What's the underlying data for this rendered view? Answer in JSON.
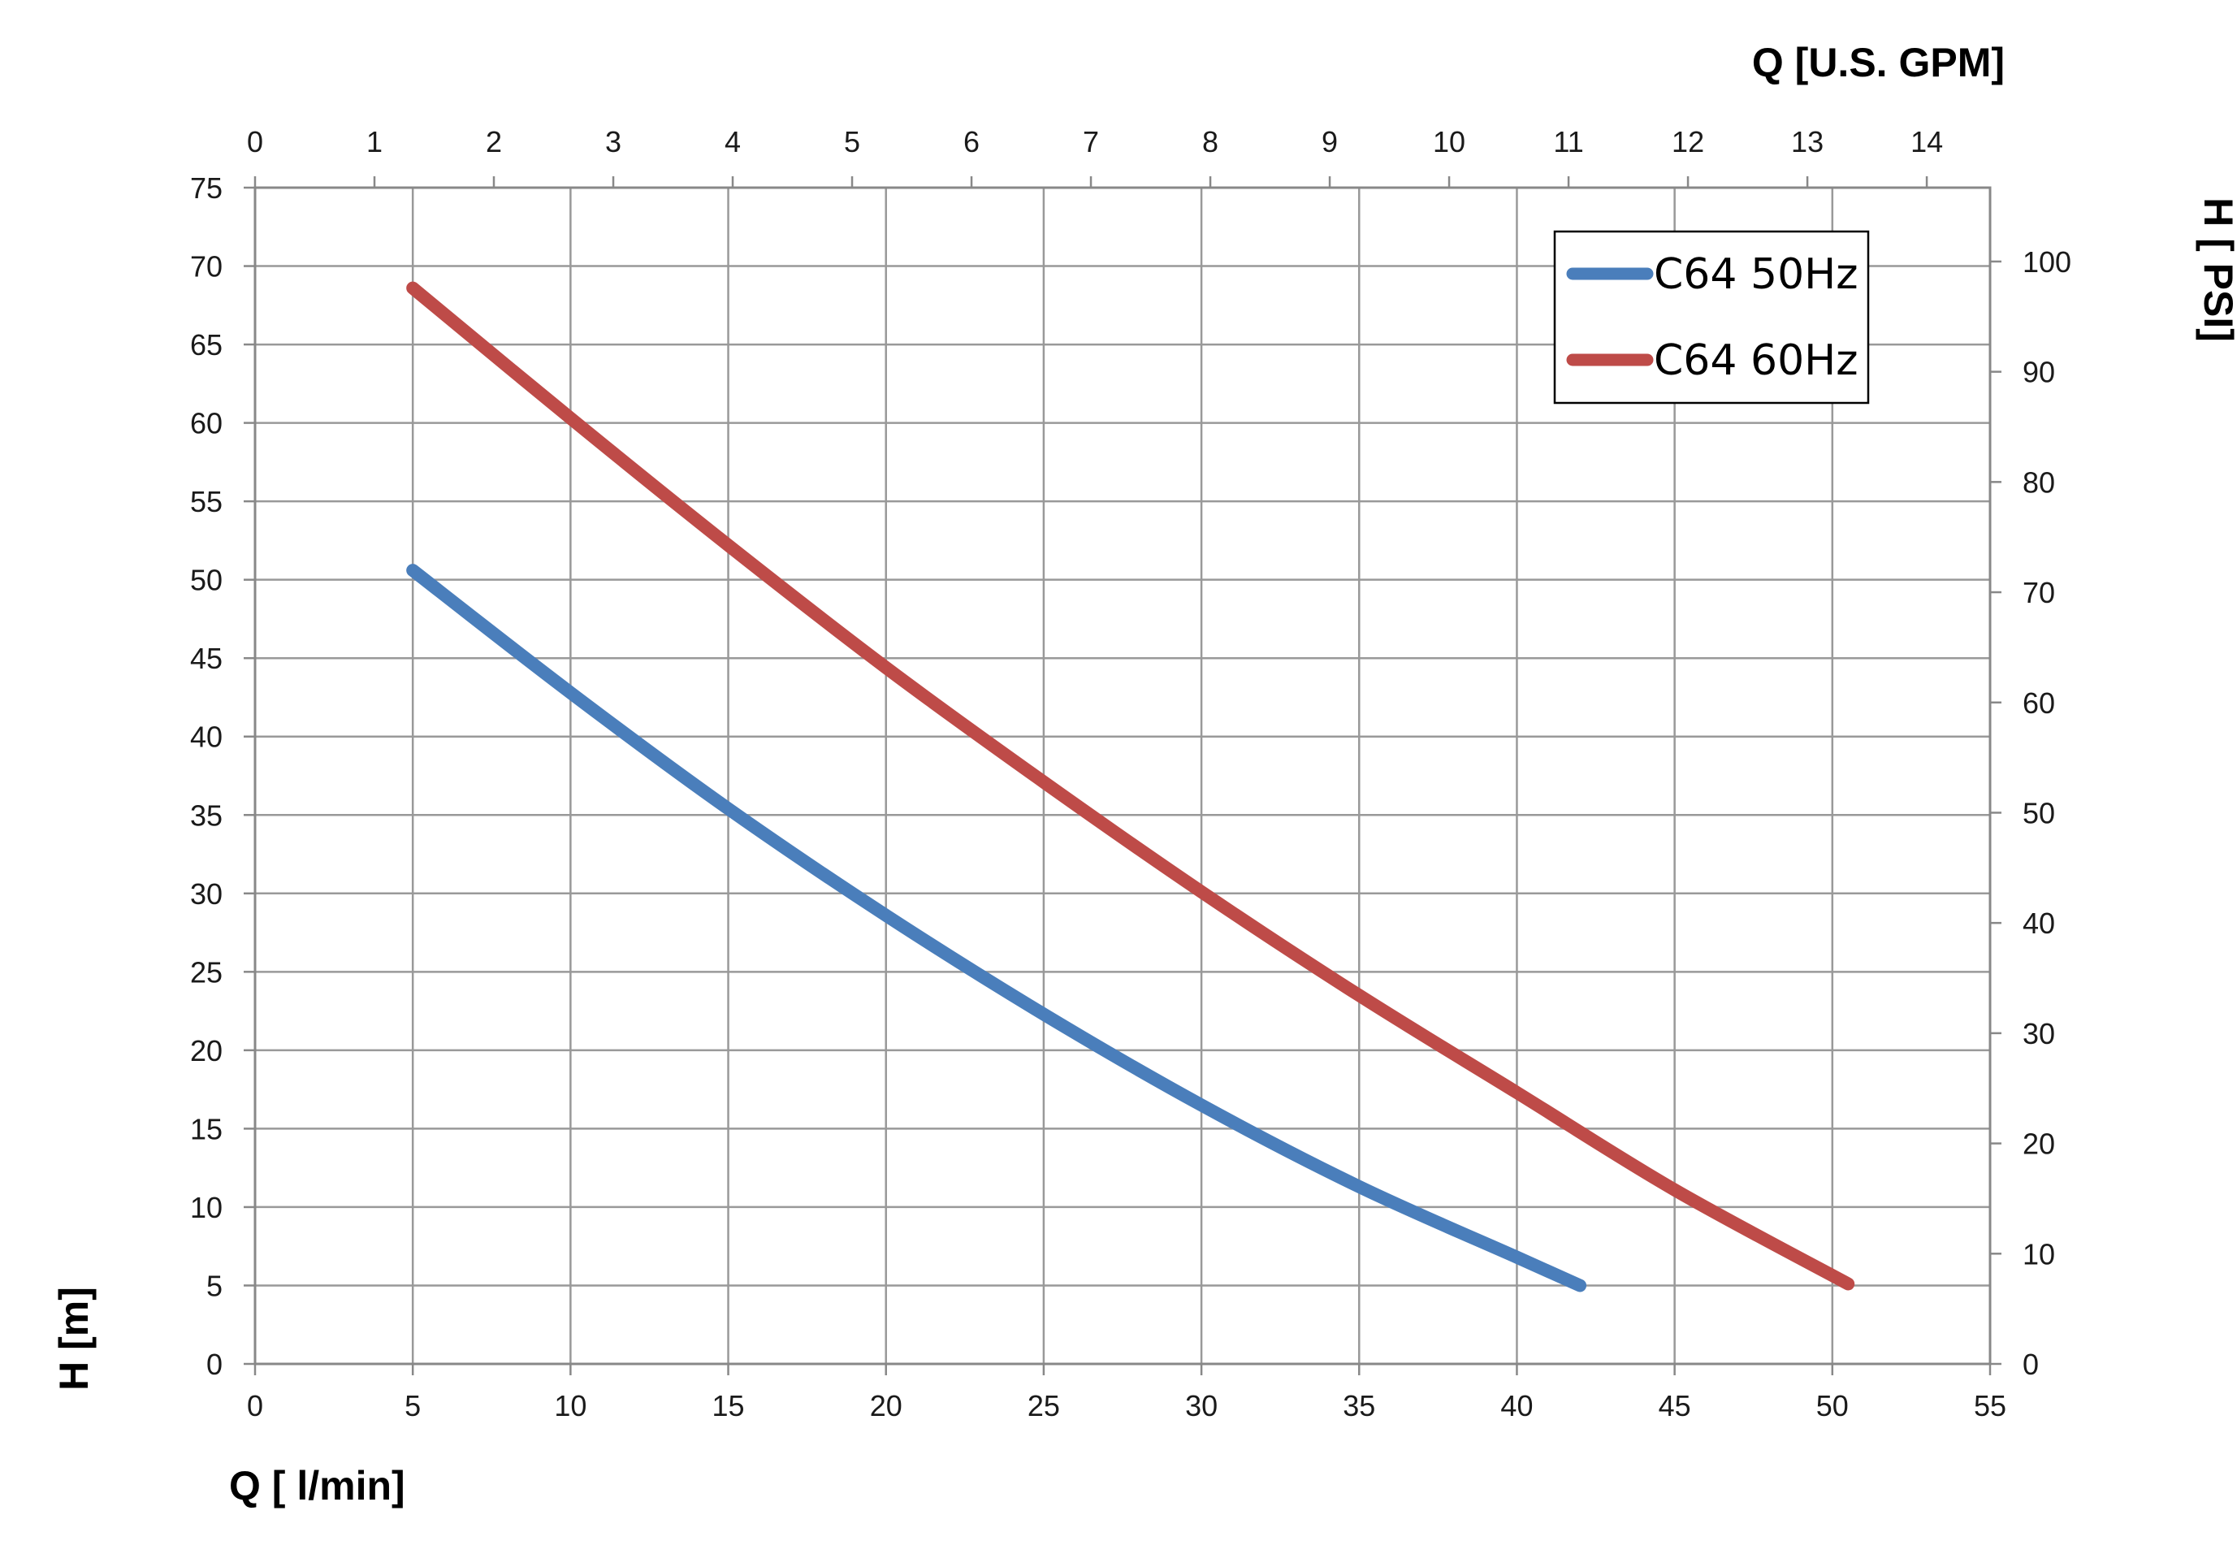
{
  "chart_data": {
    "type": "line",
    "x_bottom": {
      "label": "Q [ l/min]",
      "range": [
        0,
        55
      ],
      "ticks": [
        "0",
        "5",
        "10",
        "15",
        "20",
        "25",
        "30",
        "35",
        "40",
        "45",
        "50",
        "55"
      ]
    },
    "x_top": {
      "label": "Q  [U.S. GPM]",
      "range": [
        0,
        14.53
      ],
      "ticks": [
        "0",
        "1",
        "2",
        "3",
        "4",
        "5",
        "6",
        "7",
        "8",
        "9",
        "10",
        "11",
        "12",
        "13",
        "14"
      ]
    },
    "y_left": {
      "label": "H [m]",
      "range": [
        0,
        75
      ],
      "ticks": [
        "0",
        "5",
        "10",
        "15",
        "20",
        "25",
        "30",
        "35",
        "40",
        "45",
        "50",
        "55",
        "60",
        "65",
        "70",
        "75"
      ]
    },
    "y_right": {
      "label": "H [ PSI]",
      "range": [
        0,
        106.7
      ],
      "ticks": [
        "0",
        "10",
        "20",
        "30",
        "40",
        "50",
        "60",
        "70",
        "80",
        "90",
        "100"
      ]
    },
    "grid": true,
    "legend": {
      "placement": "top-right"
    },
    "series": [
      {
        "name": "C64 50Hz",
        "color": "#4a7ebb",
        "points": [
          [
            5,
            50.6
          ],
          [
            10,
            42.8
          ],
          [
            15,
            35.4
          ],
          [
            20,
            28.6
          ],
          [
            25,
            22.3
          ],
          [
            30,
            16.5
          ],
          [
            35,
            11.3
          ],
          [
            40,
            6.8
          ],
          [
            42,
            5
          ]
        ]
      },
      {
        "name": "C64 60Hz",
        "color": "#be4b48",
        "points": [
          [
            5,
            68.6
          ],
          [
            10,
            60.3
          ],
          [
            15,
            52.2
          ],
          [
            20,
            44.4
          ],
          [
            25,
            37.1
          ],
          [
            30,
            30.1
          ],
          [
            35,
            23.5
          ],
          [
            40,
            17.3
          ],
          [
            45,
            11.1
          ],
          [
            50.5,
            5.1
          ]
        ]
      }
    ]
  }
}
